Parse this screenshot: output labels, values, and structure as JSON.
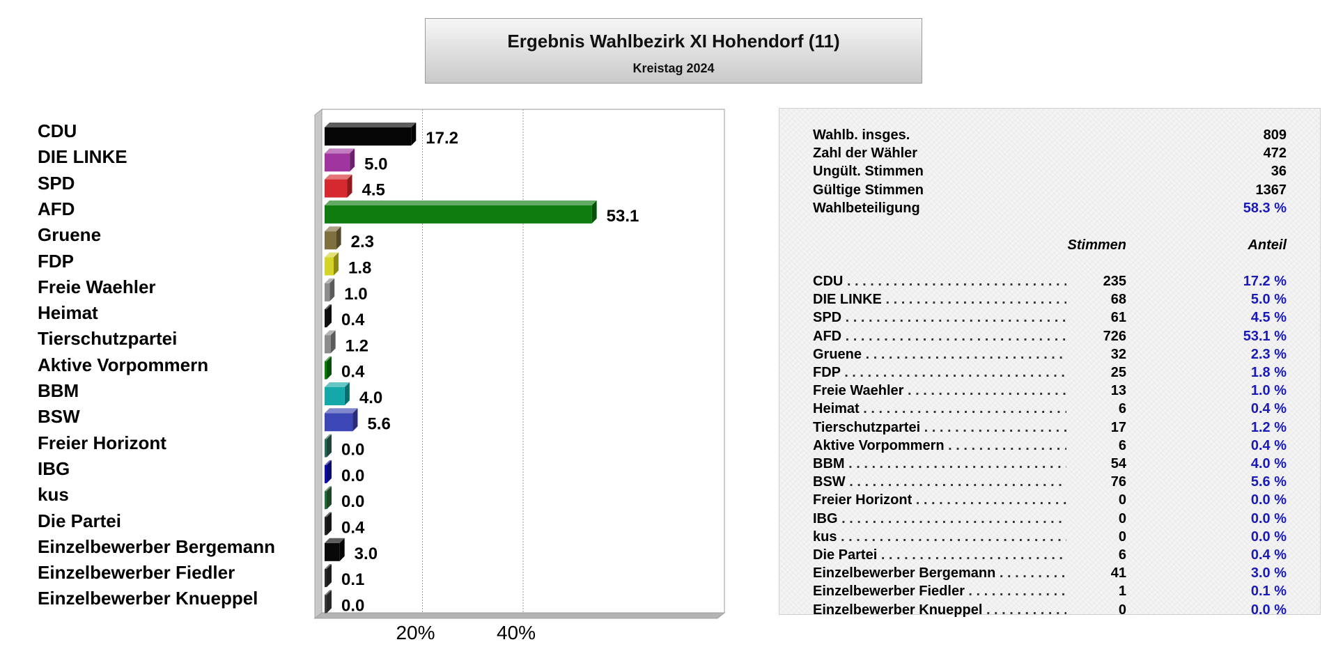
{
  "header": {
    "title": "Ergebnis Wahlbezirk XI Hohendorf (11)",
    "subtitle": "Kreistag 2024"
  },
  "chart_data": {
    "type": "bar",
    "orientation": "horizontal",
    "title": "Ergebnis Wahlbezirk XI Hohendorf (11)",
    "subtitle": "Kreistag 2024",
    "xlim": [
      0,
      80
    ],
    "xticks": [
      20,
      40
    ],
    "xtick_labels": [
      "20%",
      "40%"
    ],
    "grid": true,
    "categories": [
      "CDU",
      "DIE LINKE",
      "SPD",
      "AFD",
      "Gruene",
      "FDP",
      "Freie Waehler",
      "Heimat",
      "Tierschutzpartei",
      "Aktive Vorpommern",
      "BBM",
      "BSW",
      "Freier Horizont",
      "IBG",
      "kus",
      "Die Partei",
      "Einzelbewerber Bergemann",
      "Einzelbewerber Fiedler",
      "Einzelbewerber Knueppel"
    ],
    "values": [
      17.2,
      5.0,
      4.5,
      53.1,
      2.3,
      1.8,
      1.0,
      0.4,
      1.2,
      0.4,
      4.0,
      5.6,
      0.0,
      0.0,
      0.0,
      0.4,
      3.0,
      0.1,
      0.0
    ],
    "value_labels": [
      "17.2",
      "5.0",
      "4.5",
      "53.1",
      "2.3",
      "1.8",
      "1.0",
      "0.4",
      "1.2",
      "0.4",
      "4.0",
      "5.6",
      "0.0",
      "0.0",
      "0.0",
      "0.4",
      "3.0",
      "0.1",
      "0.0"
    ],
    "colors": [
      "#050505",
      "#a1359f",
      "#d42a2f",
      "#0e7c0e",
      "#7f7040",
      "#d4d42a",
      "#8c8c8c",
      "#121212",
      "#8c8c8c",
      "#0e7c0e",
      "#14a8a8",
      "#3c46b4",
      "#2f6a5a",
      "#1010a8",
      "#2e6b3a",
      "#222222",
      "#080808",
      "#2a2a2a",
      "#3a3a3a"
    ]
  },
  "summary": [
    {
      "label": "Wahlb. insges.",
      "value": "809"
    },
    {
      "label": "Zahl der Wähler",
      "value": "472"
    },
    {
      "label": "Ungült. Stimmen",
      "value": "36"
    },
    {
      "label": "Gültige Stimmen",
      "value": "1367"
    },
    {
      "label": "Wahlbeteiligung",
      "value": "58.3 %"
    }
  ],
  "table": {
    "col_votes": "Stimmen",
    "col_share": "Anteil",
    "rows": [
      {
        "party": "CDU",
        "votes": "235",
        "share": "17.2 %"
      },
      {
        "party": "DIE LINKE",
        "votes": "68",
        "share": "5.0 %"
      },
      {
        "party": "SPD",
        "votes": "61",
        "share": "4.5 %"
      },
      {
        "party": "AFD",
        "votes": "726",
        "share": "53.1 %"
      },
      {
        "party": "Gruene",
        "votes": "32",
        "share": "2.3 %"
      },
      {
        "party": "FDP",
        "votes": "25",
        "share": "1.8 %"
      },
      {
        "party": "Freie Waehler",
        "votes": "13",
        "share": "1.0 %"
      },
      {
        "party": "Heimat",
        "votes": "6",
        "share": "0.4 %"
      },
      {
        "party": "Tierschutzpartei",
        "votes": "17",
        "share": "1.2 %"
      },
      {
        "party": "Aktive Vorpommern",
        "votes": "6",
        "share": "0.4 %"
      },
      {
        "party": "BBM",
        "votes": "54",
        "share": "4.0 %"
      },
      {
        "party": "BSW",
        "votes": "76",
        "share": "5.6 %"
      },
      {
        "party": "Freier Horizont",
        "votes": "0",
        "share": "0.0 %"
      },
      {
        "party": "IBG",
        "votes": "0",
        "share": "0.0 %"
      },
      {
        "party": "kus",
        "votes": "0",
        "share": "0.0 %"
      },
      {
        "party": "Die Partei",
        "votes": "6",
        "share": "0.4 %"
      },
      {
        "party": "Einzelbewerber Bergemann",
        "votes": "41",
        "share": "3.0 %"
      },
      {
        "party": "Einzelbewerber Fiedler",
        "votes": "1",
        "share": "0.1 %"
      },
      {
        "party": "Einzelbewerber Knueppel",
        "votes": "0",
        "share": "0.0 %"
      }
    ]
  }
}
